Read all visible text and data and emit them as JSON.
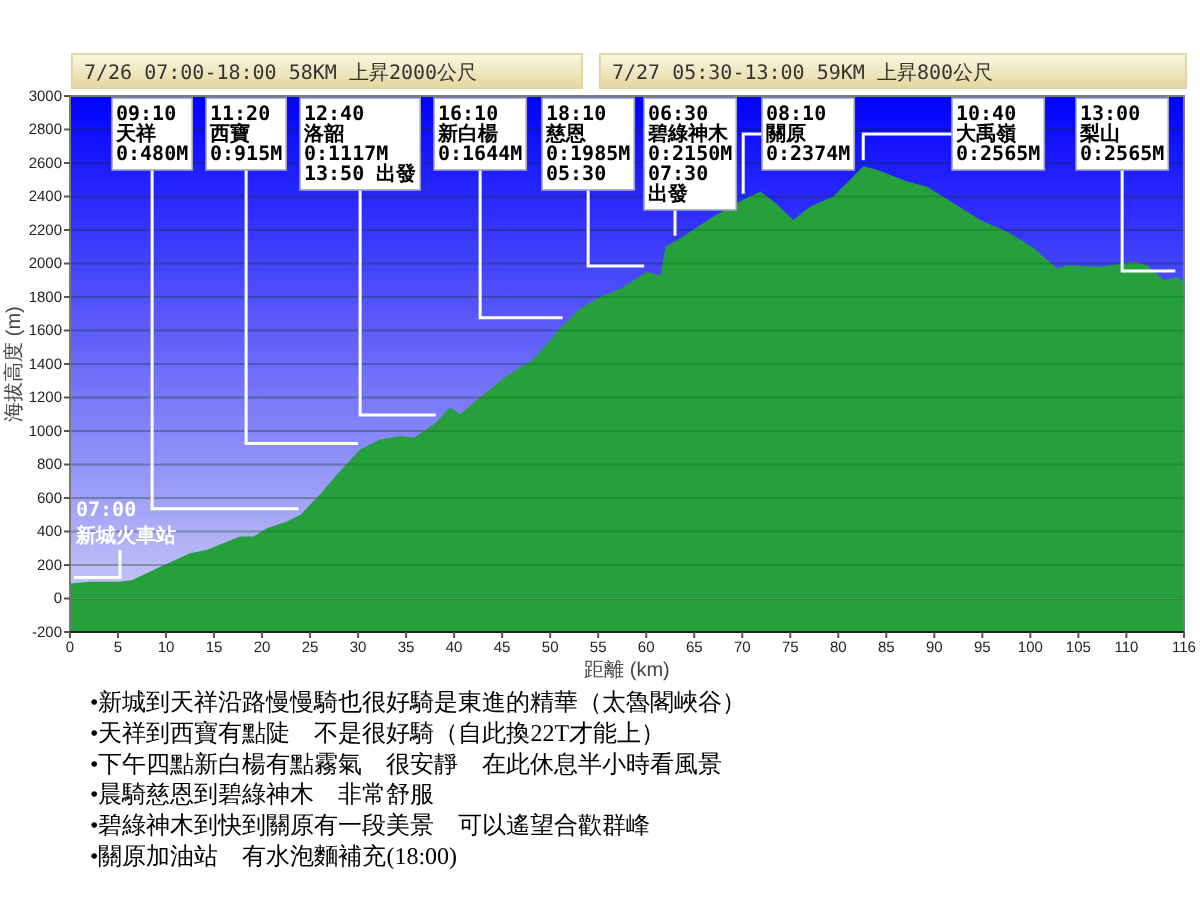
{
  "chart_data": {
    "type": "area",
    "title": "7/26 07:00-18:00 58KM 上昇2000公尺",
    "subtitle": "7/27 05:30-13:00 59KM 上昇800公尺",
    "xlabel": "距離 (km)",
    "ylabel": "海拔高度 (m)",
    "x": [
      0,
      2,
      5,
      6.5,
      9.4,
      12.5,
      14.2,
      17.7,
      19.1,
      20.5,
      22.6,
      24,
      26,
      28.1,
      30.2,
      32.3,
      34.4,
      35.8,
      37.9,
      39.6,
      40.6,
      42.7,
      45.5,
      48.3,
      51,
      53.1,
      55.2,
      57.3,
      60,
      61.5,
      62,
      63.5,
      67,
      70.1,
      71.9,
      73.5,
      75.3,
      77.1,
      79.5,
      82.6,
      84,
      87.2,
      89.2,
      92,
      94.8,
      97.6,
      100.4,
      102.8,
      103.8,
      107.3,
      110.8,
      112.2,
      113.9,
      115.3,
      116
    ],
    "values": [
      90,
      100,
      100,
      110,
      190,
      270,
      290,
      370,
      370,
      420,
      460,
      500,
      620,
      760,
      890,
      950,
      970,
      960,
      1040,
      1140,
      1100,
      1200,
      1330,
      1430,
      1610,
      1730,
      1800,
      1850,
      1950,
      1930,
      2100,
      2150,
      2280,
      2380,
      2430,
      2360,
      2260,
      2340,
      2400,
      2580,
      2560,
      2490,
      2460,
      2360,
      2260,
      2190,
      2090,
      1970,
      1990,
      1980,
      2010,
      1990,
      1900,
      1920,
      1890
    ],
    "color": "#25a03c",
    "xlim": [
      0,
      116
    ],
    "ylim": [
      -200,
      3000
    ],
    "xticks": [
      0,
      5,
      10,
      15,
      20,
      25,
      30,
      35,
      40,
      45,
      50,
      55,
      60,
      65,
      70,
      75,
      80,
      85,
      90,
      95,
      100,
      105,
      110,
      116
    ],
    "yticks": [
      -200,
      0,
      200,
      400,
      600,
      800,
      1000,
      1200,
      1400,
      1600,
      1800,
      2000,
      2200,
      2400,
      2600,
      2800,
      3000
    ],
    "grid": "y",
    "annotations": [
      {
        "text": "07:00\n新城火車站",
        "x": 0,
        "y": 90
      },
      {
        "text": "09:10\n天祥\n0:480M",
        "x": 24,
        "y": 500
      },
      {
        "text": "11:20\n西寶\n0:915M",
        "x": 30.2,
        "y": 890
      },
      {
        "text": "12:40\n洛韶\n0:1117M\n13:50 出發",
        "x": 38.3,
        "y": 1060
      },
      {
        "text": "16:10\n新白楊\n0:1644M",
        "x": 51.5,
        "y": 1640
      },
      {
        "text": "18:10\n慈恩\n0:1985M\n05:30",
        "x": 60,
        "y": 1950
      },
      {
        "text": "06:30\n碧綠神木\n0:2150M\n07:30\n出發",
        "x": 63,
        "y": 2130
      },
      {
        "text": "08:10\n關原\n0:2374M",
        "x": 70.1,
        "y": 2380
      },
      {
        "text": "10:40\n大禹嶺\n0:2565M",
        "x": 82.6,
        "y": 2580
      },
      {
        "text": "13:00\n梨山\n0:2565M",
        "x": 115.3,
        "y": 1920
      },
      "•新城到天祥沿路慢慢騎也很好騎是東進的精華（太魯閣峽谷）",
      "•天祥到西寶有點陡　不是很好騎（自此換22T才能上）",
      "•下午四點新白楊有點霧氣　很安靜　在此休息半小時看風景",
      "•晨騎慈恩到碧綠神木　非常舒服",
      "•碧綠神木到快到關原有一段美景　可以遙望合歡群峰",
      "•關原加油站　有水泡麵補充(18:00)"
    ]
  }
}
